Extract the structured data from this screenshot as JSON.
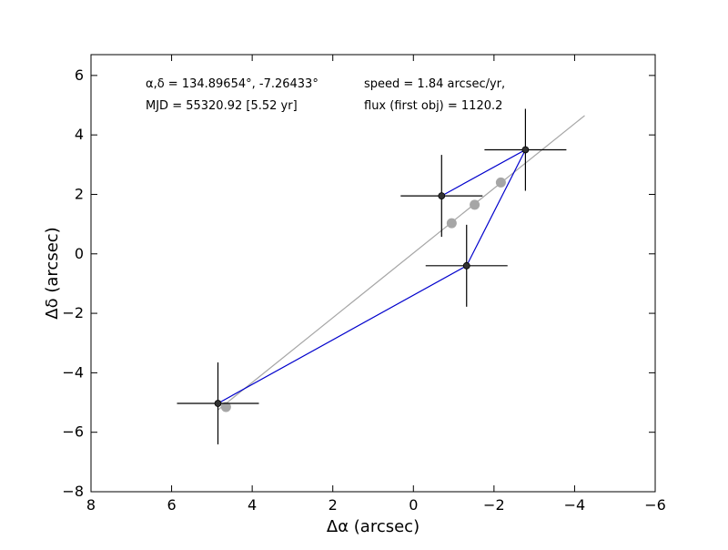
{
  "chart_data": {
    "type": "scatter",
    "xlabel": "Δα (arcsec)",
    "ylabel": "Δδ (arcsec)",
    "xlim": [
      8,
      -6
    ],
    "ylim": [
      -8,
      6.7
    ],
    "xticks": [
      8,
      6,
      4,
      2,
      0,
      -2,
      -4,
      -6
    ],
    "yticks": [
      -8,
      -6,
      -4,
      -2,
      0,
      2,
      4,
      6
    ],
    "xtick_labels": [
      "8",
      "6",
      "4",
      "2",
      "0",
      "−2",
      "−4",
      "−6"
    ],
    "ytick_labels": [
      "−8",
      "−6",
      "−4",
      "−2",
      "0",
      "2",
      "4",
      "6"
    ],
    "grid": false,
    "annotations": {
      "coords": "α,δ = 134.89654°, -7.26433°",
      "mjd": "MJD = 55320.92 [5.52 yr]",
      "speed": "speed = 1.84 arcsec/yr,",
      "flux": "flux (first obj) = 1120.2"
    },
    "detections": {
      "color": "#000000",
      "marker_color": "#333333",
      "points": [
        {
          "x": 4.85,
          "y": -5.03,
          "xerr": 1.0,
          "yerr": 1.0
        },
        {
          "x": -1.32,
          "y": -0.4,
          "xerr": 1.0,
          "yerr": 1.0
        },
        {
          "x": -2.78,
          "y": 3.5,
          "xerr": 1.0,
          "yerr": 1.0
        },
        {
          "x": -0.7,
          "y": 1.95,
          "xerr": 1.0,
          "yerr": 1.0
        }
      ]
    },
    "path": {
      "color": "#0000cc",
      "order": [
        0,
        1,
        2,
        3,
        2,
        1,
        0
      ]
    },
    "fit_line": {
      "color": "#a6a6a6",
      "x": [
        4.85,
        -4.25
      ],
      "y": [
        -5.25,
        4.65
      ]
    },
    "predicted": {
      "color": "#a6a6a6",
      "points": [
        {
          "x": 4.65,
          "y": -5.15
        },
        {
          "x": -0.95,
          "y": 1.03
        },
        {
          "x": -1.52,
          "y": 1.65
        },
        {
          "x": -2.17,
          "y": 2.4
        }
      ]
    }
  }
}
